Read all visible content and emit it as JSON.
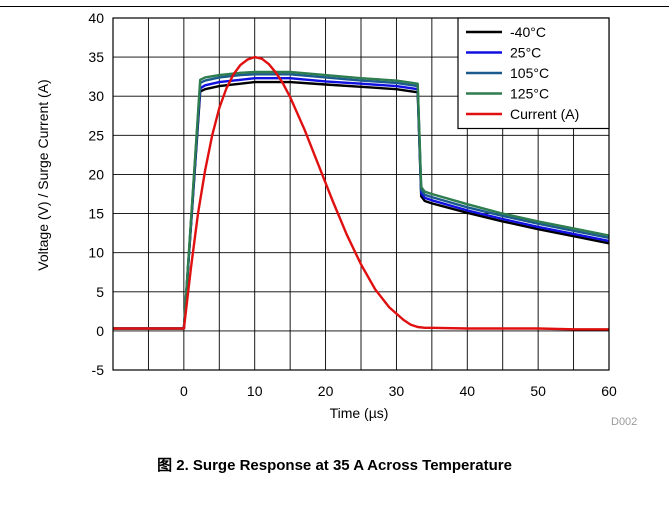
{
  "chart_data": {
    "type": "line",
    "title": "",
    "xlabel": "Time (µs)",
    "ylabel": "Voltage (V) / Surge Current (A)",
    "xlim": [
      -10,
      60
    ],
    "ylim": [
      -5,
      40
    ],
    "x_ticks": [
      0,
      10,
      20,
      30,
      40,
      50,
      60
    ],
    "y_ticks": [
      -5,
      0,
      5,
      10,
      15,
      20,
      25,
      30,
      35,
      40
    ],
    "x_tick_labels": [
      "0",
      "10",
      "20",
      "30",
      "40",
      "50",
      "60"
    ],
    "y_tick_labels": [
      "-5",
      "0",
      "5",
      "10",
      "15",
      "20",
      "25",
      "30",
      "35",
      "40"
    ],
    "grid": true,
    "legend_position": "top-right",
    "series": [
      {
        "name": "-40°C",
        "color": "#000000",
        "x": [
          -10,
          0,
          2.3,
          3,
          5,
          8,
          10,
          15,
          20,
          25,
          30,
          33,
          33.5,
          34,
          35,
          40,
          45,
          50,
          55,
          60
        ],
        "y": [
          0.3,
          0.3,
          30.6,
          30.9,
          31.3,
          31.6,
          31.8,
          31.8,
          31.5,
          31.2,
          30.9,
          30.5,
          17.2,
          16.6,
          16.3,
          15.1,
          14.0,
          13.0,
          12.1,
          11.2
        ]
      },
      {
        "name": "25°C",
        "color": "#1010e0",
        "x": [
          -10,
          0,
          2.3,
          3,
          5,
          8,
          10,
          15,
          20,
          25,
          30,
          33,
          33.5,
          34,
          35,
          40,
          45,
          50,
          55,
          60
        ],
        "y": [
          0.3,
          0.3,
          31.0,
          31.4,
          31.8,
          32.1,
          32.3,
          32.3,
          31.9,
          31.6,
          31.3,
          30.9,
          17.6,
          17.0,
          16.7,
          15.4,
          14.3,
          13.3,
          12.4,
          11.5
        ]
      },
      {
        "name": "105°C",
        "color": "#1a5a8c",
        "x": [
          -10,
          0,
          2.3,
          3,
          5,
          8,
          10,
          15,
          20,
          25,
          30,
          33,
          33.5,
          34,
          35,
          40,
          45,
          50,
          55,
          60
        ],
        "y": [
          0.3,
          0.3,
          31.7,
          32.0,
          32.4,
          32.7,
          32.8,
          32.8,
          32.4,
          32.0,
          31.7,
          31.3,
          18.0,
          17.4,
          17.1,
          15.8,
          14.7,
          13.7,
          12.8,
          11.9
        ]
      },
      {
        "name": "125°C",
        "color": "#2e7d4f",
        "x": [
          -10,
          0,
          2.3,
          3,
          5,
          8,
          10,
          15,
          20,
          25,
          30,
          33,
          33.5,
          34,
          35,
          40,
          45,
          50,
          55,
          60
        ],
        "y": [
          0.3,
          0.3,
          32.1,
          32.4,
          32.7,
          33.0,
          33.1,
          33.1,
          32.7,
          32.3,
          32.0,
          31.6,
          18.4,
          17.8,
          17.5,
          16.2,
          15.0,
          14.0,
          13.1,
          12.2
        ]
      },
      {
        "name": "Current (A)",
        "color": "#e01010",
        "x": [
          -10,
          0,
          1,
          2,
          3,
          4,
          5,
          6,
          7,
          8,
          9,
          10,
          11,
          12,
          13,
          14,
          15,
          17,
          19,
          21,
          23,
          25,
          27,
          29,
          31,
          32,
          33,
          34,
          35,
          40,
          45,
          50,
          55,
          60
        ],
        "y": [
          0.3,
          0.3,
          8.0,
          15.0,
          20.5,
          25.0,
          28.5,
          31.0,
          32.8,
          34.0,
          34.7,
          35.0,
          34.8,
          34.1,
          33.0,
          31.6,
          29.9,
          25.8,
          21.2,
          16.6,
          12.3,
          8.5,
          5.3,
          3.0,
          1.4,
          0.8,
          0.5,
          0.4,
          0.4,
          0.3,
          0.3,
          0.3,
          0.2,
          0.2
        ]
      }
    ]
  },
  "doc_id": "D002",
  "caption": "图 2. Surge Response at 35 A Across Temperature"
}
